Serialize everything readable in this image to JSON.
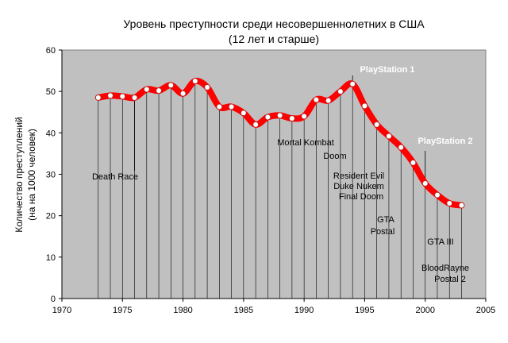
{
  "chart_data": {
    "type": "line",
    "title": "Уровень преступности среди несовершеннолетних в США",
    "subtitle": "(12 лет и старше)",
    "ylabel_line1": "Количество преступлений",
    "ylabel_line2": "(на на 1000 человек)",
    "xlim": [
      1970,
      2005
    ],
    "ylim": [
      0,
      60
    ],
    "x_ticks": [
      "1970",
      "1975",
      "1980",
      "1985",
      "1990",
      "1995",
      "2000",
      "2005"
    ],
    "y_ticks": [
      "0",
      "10",
      "20",
      "30",
      "40",
      "50",
      "60"
    ],
    "grid": false,
    "plot_background": "#c0c0c0",
    "line_color": "#ff0000",
    "marker_color": "#ffffff",
    "series": [
      {
        "x": [
          1973,
          1974,
          1975,
          1976,
          1977,
          1978,
          1979,
          1980,
          1981,
          1982,
          1983,
          1984,
          1985,
          1986,
          1987,
          1988,
          1989,
          1990,
          1991,
          1992,
          1993,
          1994,
          1995,
          1996,
          1997,
          1998,
          1999,
          2000,
          2001,
          2002,
          2003
        ],
        "values": [
          48.5,
          49.0,
          48.8,
          48.5,
          50.5,
          50.2,
          51.5,
          49.5,
          52.5,
          51.0,
          46.3,
          46.3,
          44.8,
          42.0,
          43.8,
          44.2,
          43.5,
          44.0,
          48.0,
          47.8,
          50.0,
          51.8,
          46.5,
          42.0,
          39.2,
          36.5,
          32.8,
          27.8,
          25.0,
          23.0,
          22.5
        ]
      }
    ],
    "annotations": [
      {
        "text": "Death Race",
        "year": 1976
      },
      {
        "text": "Mortal Kombat",
        "year": 1992
      },
      {
        "text": "Doom",
        "year": 1993
      },
      {
        "text": "PlayStation 1",
        "year": 1994
      },
      {
        "text": "Resident Evil",
        "year": 1996
      },
      {
        "text": "Duke Nukem",
        "year": 1996
      },
      {
        "text": "Final Doom",
        "year": 1996
      },
      {
        "text": "GTA",
        "year": 1997
      },
      {
        "text": "Postal",
        "year": 1997
      },
      {
        "text": "PlayStation 2",
        "year": 2000
      },
      {
        "text": "GTA III",
        "year": 2001
      },
      {
        "text": "BloodRayne",
        "year": 2002
      },
      {
        "text": "Postal 2",
        "year": 2002
      }
    ]
  }
}
